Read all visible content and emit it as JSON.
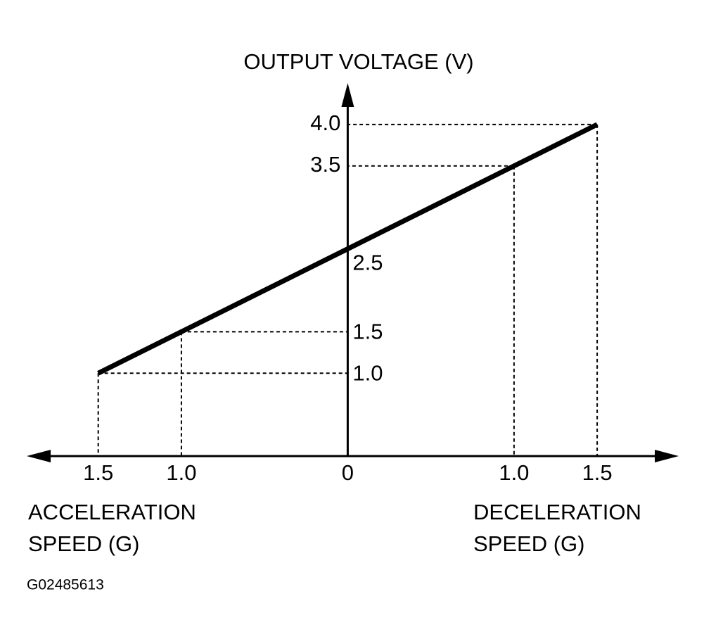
{
  "chart_data": {
    "type": "line",
    "y_label": "OUTPUT VOLTAGE (V)",
    "x_label_left": [
      "ACCELERATION",
      "SPEED (G)"
    ],
    "x_label_right": [
      "DECELERATION",
      "SPEED (G)"
    ],
    "figure_code": "G02485613",
    "x": [
      -1.5,
      -1.0,
      0,
      1.0,
      1.5
    ],
    "series": [
      {
        "color": "#000000",
        "values": [
          1.0,
          1.5,
          2.5,
          3.5,
          4.0
        ]
      }
    ],
    "xlim": [
      -1.93,
      1.99
    ],
    "ylim": [
      0,
      4.5
    ],
    "xticks": [
      {
        "value": -1.5,
        "label": "1.5"
      },
      {
        "value": -1.0,
        "label": "1.0"
      },
      0,
      {
        "value": 1.0,
        "label": "1.0"
      },
      {
        "value": 1.5,
        "label": "1.5"
      }
    ],
    "yticks": [
      {
        "value": 1.0,
        "label": "1.0"
      },
      {
        "value": 1.5,
        "label": "1.5"
      },
      {
        "value": 2.5,
        "label": "2.5"
      },
      {
        "value": 3.5,
        "label": "3.5"
      },
      {
        "value": 4.0,
        "label": "4.0"
      }
    ]
  }
}
